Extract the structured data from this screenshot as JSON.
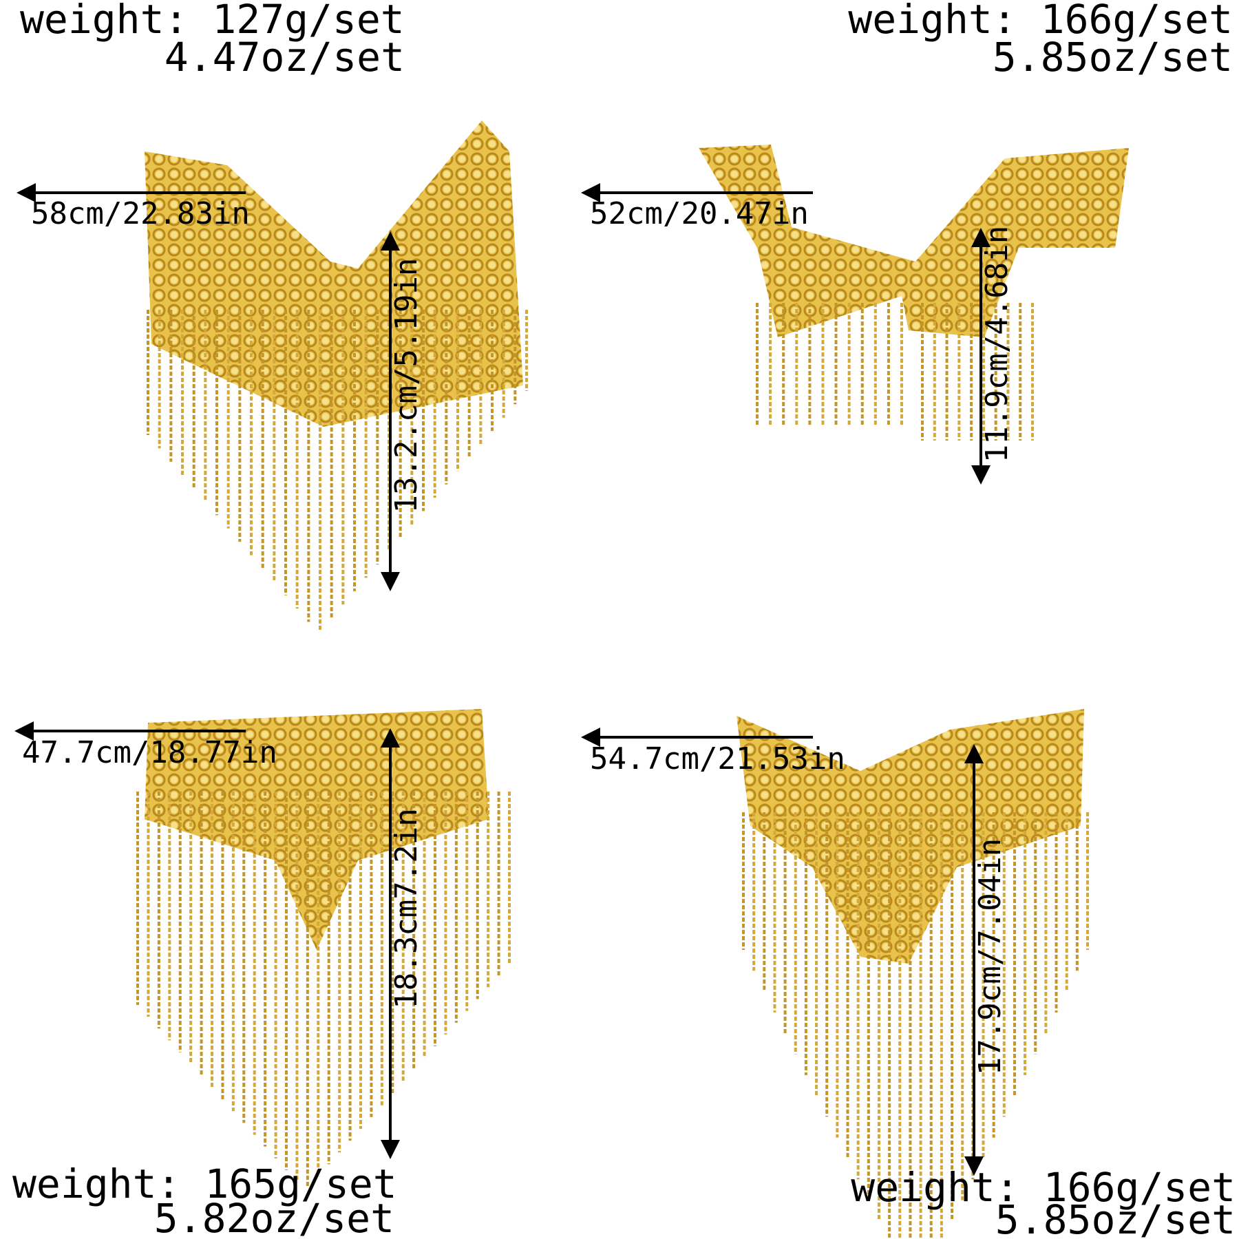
{
  "panels": [
    {
      "weight": "weight: 127g/set",
      "weight_oz": "4.47oz/set",
      "width_label": "58cm/22.83in",
      "height_label": "13.2.cm/5.19in"
    },
    {
      "weight": "weight: 166g/set",
      "weight_oz": "5.85oz/set",
      "width_label": "52cm/20.47in",
      "height_label": "11.9cm/4.68in"
    },
    {
      "weight": "weight: 165g/set",
      "weight_oz": "5.82oz/set",
      "width_label": "47.7cm/18.77in",
      "height_label": "18.3cm7.2in"
    },
    {
      "weight": "weight: 166g/set",
      "weight_oz": "5.85oz/set",
      "width_label": "54.7cm/21.53in",
      "height_label": "17.9cm/7.04in"
    }
  ]
}
